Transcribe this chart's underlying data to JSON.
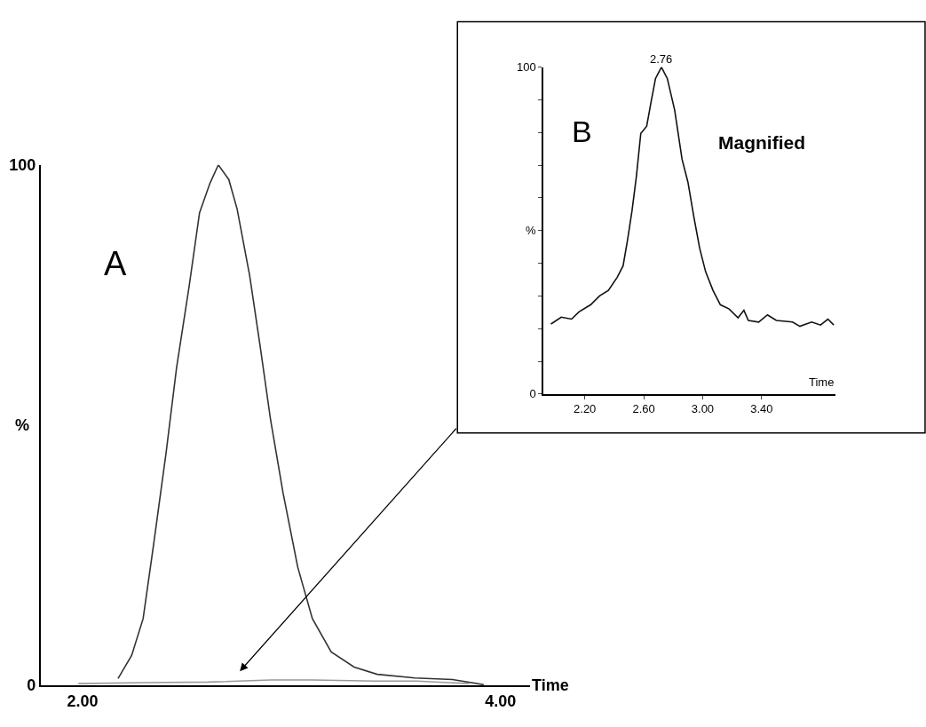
{
  "chart_data": [
    {
      "type": "line",
      "xlabel": "Time",
      "ylabel": "%",
      "annotations": [
        "A"
      ],
      "xlim": [
        1.8,
        4.14
      ],
      "ylim": [
        0,
        100
      ],
      "xticks": [
        {
          "value": 2,
          "label": "2.00"
        },
        {
          "value": 4,
          "label": "4.00"
        }
      ],
      "yticks": [
        0,
        100
      ],
      "series": [
        {
          "color": "#333333",
          "x": [
            2.17,
            2.235,
            2.29,
            2.34,
            2.4,
            2.45,
            2.51,
            2.56,
            2.61,
            2.65,
            2.7,
            2.74,
            2.8,
            2.85,
            2.9,
            2.96,
            3.03,
            3.1,
            3.19,
            3.3,
            3.41,
            3.59,
            3.77,
            3.92
          ],
          "values": [
            1.3,
            5.7,
            12.8,
            27,
            44.7,
            61,
            76.6,
            90.8,
            96.5,
            100,
            97.2,
            91.5,
            78.7,
            65.2,
            51,
            36.9,
            22.7,
            12.8,
            6.4,
            3.5,
            2.1,
            1.4,
            1.1,
            0.1
          ]
        },
        {
          "color": "#999999",
          "x": [
            1.98,
            2.3,
            2.6,
            2.9,
            3.1,
            3.4,
            3.6,
            3.85
          ],
          "values": [
            0.3,
            0.5,
            0.6,
            1.0,
            1.0,
            0.8,
            0.8,
            0.3
          ]
        }
      ]
    },
    {
      "type": "line",
      "xlabel": "Time",
      "ylabel": "%",
      "annotations": [
        "B",
        "Magnified",
        {
          "text": "2.76",
          "x": 2.72,
          "y": 100
        }
      ],
      "xlim": [
        1.92,
        3.9
      ],
      "ylim": [
        0,
        100
      ],
      "xticks": [
        {
          "value": 2.2,
          "label": "2.20"
        },
        {
          "value": 2.6,
          "label": "2.60"
        },
        {
          "value": 3.0,
          "label": "3.00"
        },
        {
          "value": 3.4,
          "label": "3.40"
        }
      ],
      "yticks": [
        0,
        {
          "value": 10,
          "label": null
        },
        {
          "value": 20,
          "label": null
        },
        {
          "value": 30,
          "label": null
        },
        {
          "value": 40,
          "label": null
        },
        {
          "value": 50,
          "label": null
        },
        {
          "value": 60,
          "label": null
        },
        {
          "value": 70,
          "label": null
        },
        {
          "value": 80,
          "label": null
        },
        {
          "value": 90,
          "label": null
        },
        100
      ],
      "series": [
        {
          "color": "#111111",
          "x": [
            1.97,
            2.04,
            2.11,
            2.16,
            2.24,
            2.3,
            2.36,
            2.42,
            2.46,
            2.49,
            2.52,
            2.55,
            2.58,
            2.62,
            2.65,
            2.68,
            2.72,
            2.76,
            2.81,
            2.86,
            2.9,
            2.94,
            2.98,
            3.02,
            3.07,
            3.12,
            3.18,
            3.24,
            3.28,
            3.31,
            3.38,
            3.44,
            3.5,
            3.61,
            3.66,
            3.74,
            3.8,
            3.85,
            3.89
          ],
          "values": [
            21.4,
            23.5,
            22.9,
            25.1,
            27.3,
            30.0,
            31.7,
            35.7,
            39.2,
            47.1,
            55.9,
            66.5,
            79.7,
            81.9,
            89.4,
            96.5,
            100,
            96.5,
            86.8,
            71.8,
            64.8,
            54.2,
            44.5,
            37.4,
            31.7,
            27.3,
            26.0,
            23.3,
            25.6,
            22.5,
            22.0,
            24.2,
            22.5,
            22.0,
            20.7,
            22.0,
            21.1,
            22.9,
            21.1
          ]
        }
      ]
    }
  ]
}
